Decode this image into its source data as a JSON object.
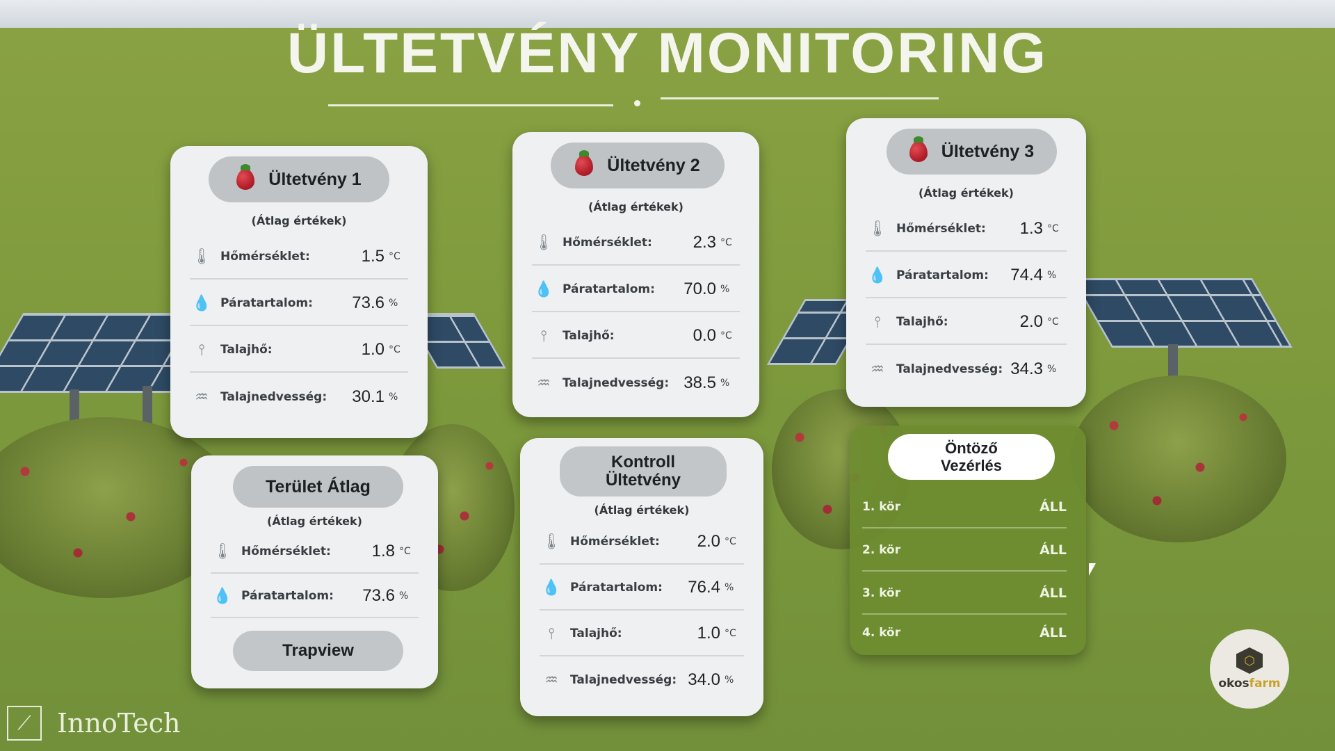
{
  "page": {
    "title": "ÜLTETVÉNY MONITORING",
    "brand": "InnoTech",
    "logo_text_a": "okos",
    "logo_text_b": "farm"
  },
  "colors": {
    "background": "#7e9a3c",
    "card": "#eef0f2",
    "pill": "#bfc3c6",
    "control_panel": "#6e8c30"
  },
  "plantations": [
    {
      "name": "Ültetvény 1",
      "subtitle": "(Átlag értékek)",
      "rows": [
        {
          "icon": "thermometer-icon",
          "label": "Hőmérséklet:",
          "value": "1.5",
          "unit": "°C"
        },
        {
          "icon": "humidity-icon",
          "label": "Páratartalom:",
          "value": "73.6",
          "unit": "%"
        },
        {
          "icon": "soil-temperature-icon",
          "label": "Talajhő:",
          "value": "1.0",
          "unit": "°C"
        },
        {
          "icon": "soil-moisture-icon",
          "label": "Talajnedvesség:",
          "value": "30.1",
          "unit": "%"
        }
      ]
    },
    {
      "name": "Ültetvény 2",
      "subtitle": "(Átlag értékek)",
      "rows": [
        {
          "icon": "thermometer-icon",
          "label": "Hőmérséklet:",
          "value": "2.3",
          "unit": "°C"
        },
        {
          "icon": "humidity-icon",
          "label": "Páratartalom:",
          "value": "70.0",
          "unit": "%"
        },
        {
          "icon": "soil-temperature-icon",
          "label": "Talajhő:",
          "value": "0.0",
          "unit": "°C"
        },
        {
          "icon": "soil-moisture-icon",
          "label": "Talajnedvesség:",
          "value": "38.5",
          "unit": "%"
        }
      ]
    },
    {
      "name": "Ültetvény 3",
      "subtitle": "(Átlag értékek)",
      "rows": [
        {
          "icon": "thermometer-icon",
          "label": "Hőmérséklet:",
          "value": "1.3",
          "unit": "°C"
        },
        {
          "icon": "humidity-icon",
          "label": "Páratartalom:",
          "value": "74.4",
          "unit": "%"
        },
        {
          "icon": "soil-temperature-icon",
          "label": "Talajhő:",
          "value": "2.0",
          "unit": "°C"
        },
        {
          "icon": "soil-moisture-icon",
          "label": "Talajnedvesség:",
          "value": "34.3",
          "unit": "%"
        }
      ]
    }
  ],
  "area_average": {
    "name": "Terület Átlag",
    "subtitle": "(Átlag értékek)",
    "rows": [
      {
        "icon": "thermometer-icon",
        "label": "Hőmérséklet:",
        "value": "1.8",
        "unit": "°C"
      },
      {
        "icon": "humidity-icon",
        "label": "Páratartalom:",
        "value": "73.6",
        "unit": "%"
      }
    ],
    "button_label": "Trapview"
  },
  "control_plantation": {
    "name_line1": "Kontroll",
    "name_line2": "Ültetvény",
    "subtitle": "(Átlag értékek)",
    "rows": [
      {
        "icon": "thermometer-icon",
        "label": "Hőmérséklet:",
        "value": "2.0",
        "unit": "°C"
      },
      {
        "icon": "humidity-icon",
        "label": "Páratartalom:",
        "value": "76.4",
        "unit": "%"
      },
      {
        "icon": "soil-temperature-icon",
        "label": "Talajhő:",
        "value": "1.0",
        "unit": "°C"
      },
      {
        "icon": "soil-moisture-icon",
        "label": "Talajnedvesség:",
        "value": "34.0",
        "unit": "%"
      }
    ]
  },
  "irrigation": {
    "title_line1": "Öntöző",
    "title_line2": "Vezérlés",
    "circuits": [
      {
        "name": "1. kör",
        "state": "ÁLL"
      },
      {
        "name": "2. kör",
        "state": "ÁLL"
      },
      {
        "name": "3. kör",
        "state": "ÁLL"
      },
      {
        "name": "4. kör",
        "state": "ÁLL"
      }
    ]
  }
}
